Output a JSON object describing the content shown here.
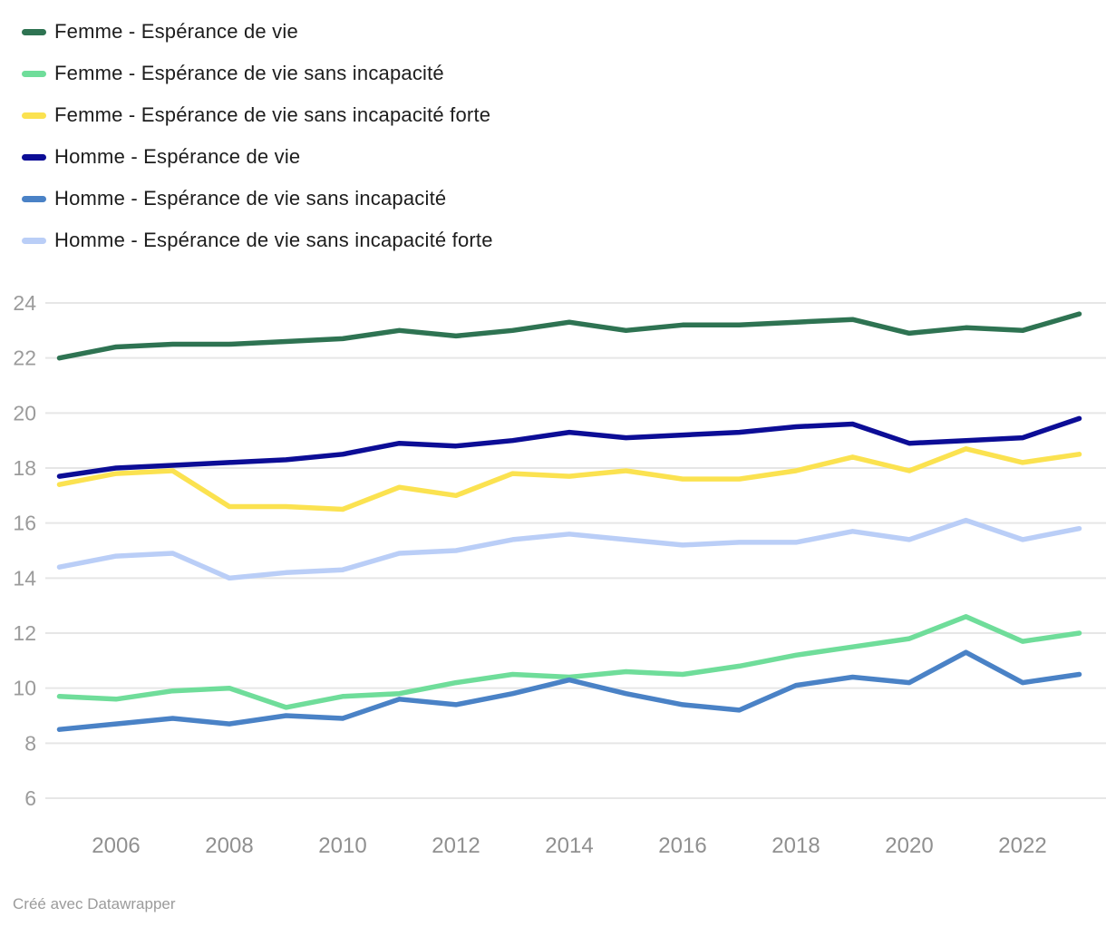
{
  "legend": {
    "items": [
      {
        "label": "Femme - Espérance de vie",
        "color": "#2e7352"
      },
      {
        "label": "Femme - Espérance de vie sans incapacité",
        "color": "#6fdd9a"
      },
      {
        "label": "Femme - Espérance de vie sans incapacité forte",
        "color": "#fbe250"
      },
      {
        "label": "Homme - Espérance de vie",
        "color": "#0c0d96"
      },
      {
        "label": "Homme - Espérance de vie sans incapacité",
        "color": "#4a82c6"
      },
      {
        "label": "Homme - Espérance de vie sans incapacité forte",
        "color": "#bacef7"
      }
    ]
  },
  "chart_data": {
    "type": "line",
    "x": [
      2005,
      2006,
      2007,
      2008,
      2009,
      2010,
      2011,
      2012,
      2013,
      2014,
      2015,
      2016,
      2017,
      2018,
      2019,
      2020,
      2021,
      2022,
      2023
    ],
    "series": [
      {
        "name": "Femme - Espérance de vie",
        "color": "#2e7352",
        "values": [
          22.0,
          22.4,
          22.5,
          22.5,
          22.6,
          22.7,
          23.0,
          22.8,
          23.0,
          23.3,
          23.0,
          23.2,
          23.2,
          23.3,
          23.4,
          22.9,
          23.1,
          23.0,
          23.6
        ]
      },
      {
        "name": "Femme - Espérance de vie sans incapacité",
        "color": "#6fdd9a",
        "values": [
          9.7,
          9.6,
          9.9,
          10.0,
          9.3,
          9.7,
          9.8,
          10.2,
          10.5,
          10.4,
          10.6,
          10.5,
          10.8,
          11.2,
          11.5,
          11.8,
          12.6,
          11.7,
          12.0
        ]
      },
      {
        "name": "Femme - Espérance de vie sans incapacité forte",
        "color": "#fbe250",
        "values": [
          17.4,
          17.8,
          17.9,
          16.6,
          16.6,
          16.5,
          17.3,
          17.0,
          17.8,
          17.7,
          17.9,
          17.6,
          17.6,
          17.9,
          18.4,
          17.9,
          18.7,
          18.2,
          18.5
        ]
      },
      {
        "name": "Homme - Espérance de vie",
        "color": "#0c0d96",
        "values": [
          17.7,
          18.0,
          18.1,
          18.2,
          18.3,
          18.5,
          18.9,
          18.8,
          19.0,
          19.3,
          19.1,
          19.2,
          19.3,
          19.5,
          19.6,
          18.9,
          19.0,
          19.1,
          19.8
        ]
      },
      {
        "name": "Homme - Espérance de vie sans incapacité",
        "color": "#4a82c6",
        "values": [
          8.5,
          8.7,
          8.9,
          8.7,
          9.0,
          8.9,
          9.6,
          9.4,
          9.8,
          10.3,
          9.8,
          9.4,
          9.2,
          10.1,
          10.4,
          10.2,
          11.3,
          10.2,
          10.5
        ]
      },
      {
        "name": "Homme - Espérance de vie sans incapacité forte",
        "color": "#bacef7",
        "values": [
          14.4,
          14.8,
          14.9,
          14.0,
          14.2,
          14.3,
          14.9,
          15.0,
          15.4,
          15.6,
          15.4,
          15.2,
          15.3,
          15.3,
          15.7,
          15.4,
          16.1,
          15.4,
          15.8
        ]
      }
    ],
    "title": "",
    "xlabel": "",
    "ylabel": "",
    "y_ticks": [
      24,
      22,
      20,
      18,
      16,
      14,
      12,
      10,
      8,
      6
    ],
    "x_ticks": [
      2006,
      2008,
      2010,
      2012,
      2014,
      2016,
      2018,
      2020,
      2022
    ],
    "ylim": [
      6,
      24
    ],
    "xlim": [
      2005,
      2023
    ],
    "grid": "horizontal",
    "legend_position": "top-left",
    "axis_label_color": "#909090",
    "grid_color": "#e6e6e6"
  },
  "footer": {
    "credit": "Créé avec Datawrapper"
  }
}
